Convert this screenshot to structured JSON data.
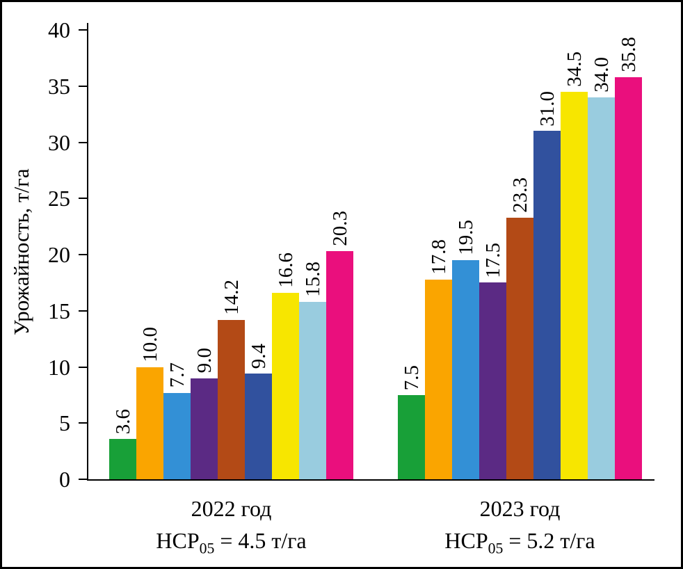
{
  "chart_data": {
    "type": "bar",
    "title": "",
    "ylabel": "Урожайность, т/га",
    "xlabel": "",
    "ylim": [
      0,
      40
    ],
    "yticks": [
      "0",
      "5",
      "10",
      "15",
      "20",
      "25",
      "30",
      "35",
      "40"
    ],
    "grid": false,
    "legend": "none",
    "bar_colors": [
      "#18a038",
      "#faa500",
      "#3390d6",
      "#5b2a84",
      "#b34a16",
      "#31519e",
      "#f7e600",
      "#99ccdf",
      "#ea0f7d"
    ],
    "groups": [
      {
        "label": "2022 год",
        "note_main": "НСР",
        "note_sub": "05",
        "note_rest": " = 4.5 т/га",
        "values": [
          "3.6",
          "10.0",
          "7.7",
          "9.0",
          "14.2",
          "9.4",
          "16.6",
          "15.8",
          "20.3"
        ]
      },
      {
        "label": "2023 год",
        "note_main": "НСР",
        "note_sub": "05",
        "note_rest": " = 5.2 т/га",
        "values": [
          "7.5",
          "17.8",
          "19.5",
          "17.5",
          "23.3",
          "31.0",
          "34.5",
          "34.0",
          "35.8"
        ]
      }
    ]
  }
}
